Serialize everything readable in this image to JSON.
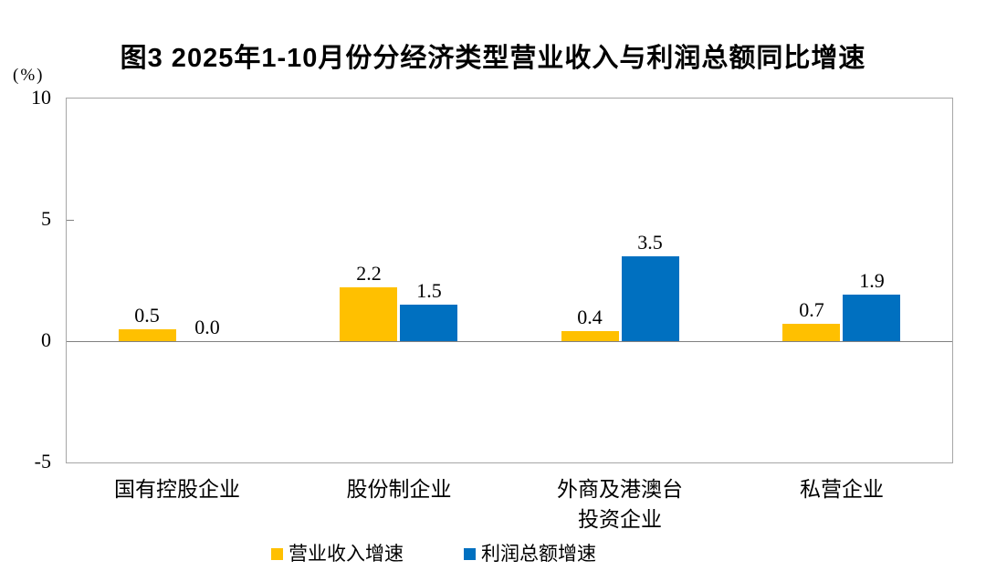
{
  "title": "图3 2025年1-10月份分经济类型营业收入与利润总额同比增速",
  "chart_data": {
    "type": "bar",
    "categories": [
      "国有控股企业",
      "股份制企业",
      "外商及港澳台\n投资企业",
      "私营企业"
    ],
    "series": [
      {
        "name": "营业收入增速",
        "color": "#FFC000",
        "values": [
          0.5,
          2.2,
          0.4,
          0.7
        ]
      },
      {
        "name": "利润总额增速",
        "color": "#0070C0",
        "values": [
          0.0,
          1.5,
          3.5,
          1.9
        ]
      }
    ],
    "data_labels": [
      [
        "0.5",
        "2.2",
        "0.4",
        "0.7"
      ],
      [
        "0.0",
        "1.5",
        "3.5",
        "1.9"
      ]
    ],
    "ylabel": "(%)",
    "ylim": [
      -5,
      10
    ],
    "yticks": [
      10,
      5,
      0,
      -5
    ],
    "grid": false,
    "legend_position": "bottom",
    "axis_color": "#a6a6a6",
    "zero_line_color": "#808080"
  }
}
